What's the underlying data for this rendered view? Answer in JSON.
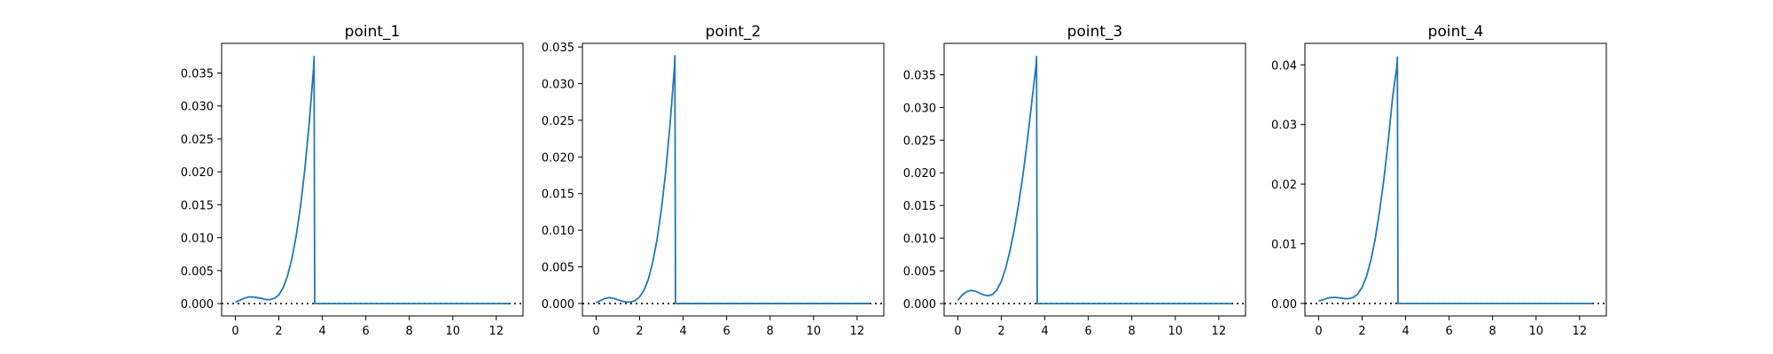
{
  "chart_data": [
    {
      "type": "line",
      "title": "point_1",
      "xlim": [
        -0.63,
        13.23
      ],
      "ylim": [
        -0.00188,
        0.0395
      ],
      "xticks": [
        0,
        2,
        4,
        6,
        8,
        10,
        12
      ],
      "xtick_labels": [
        "0",
        "2",
        "4",
        "6",
        "8",
        "10",
        "12"
      ],
      "yticks": [
        0.0,
        0.005,
        0.01,
        0.015,
        0.02,
        0.025,
        0.03,
        0.035
      ],
      "ytick_labels": [
        "0.000",
        "0.005",
        "0.010",
        "0.015",
        "0.020",
        "0.025",
        "0.030",
        "0.035"
      ],
      "series": [
        {
          "color": "#1f77b4",
          "x": [
            0.0,
            0.2,
            0.4,
            0.6,
            0.8,
            1.0,
            1.2,
            1.4,
            1.6,
            1.8,
            2.0,
            2.2,
            2.4,
            2.6,
            2.8,
            3.0,
            3.2,
            3.4,
            3.6,
            3.62,
            3.65,
            12.6
          ],
          "y": [
            0.0002,
            0.0005,
            0.0008,
            0.001,
            0.001,
            0.0009,
            0.0008,
            0.0006,
            0.0006,
            0.0008,
            0.0013,
            0.0024,
            0.0042,
            0.0068,
            0.0103,
            0.0148,
            0.0205,
            0.0275,
            0.0358,
            0.0375,
            0.0,
            0.0
          ]
        }
      ],
      "reference_line": {
        "y": 0,
        "style": "dotted",
        "color": "#000000"
      },
      "grid": false
    },
    {
      "type": "line",
      "title": "point_2",
      "xlim": [
        -0.63,
        13.23
      ],
      "ylim": [
        -0.0017,
        0.0355
      ],
      "xticks": [
        0,
        2,
        4,
        6,
        8,
        10,
        12
      ],
      "xtick_labels": [
        "0",
        "2",
        "4",
        "6",
        "8",
        "10",
        "12"
      ],
      "yticks": [
        0.0,
        0.005,
        0.01,
        0.015,
        0.02,
        0.025,
        0.03,
        0.035
      ],
      "ytick_labels": [
        "0.000",
        "0.005",
        "0.010",
        "0.015",
        "0.020",
        "0.025",
        "0.030",
        "0.035"
      ],
      "series": [
        {
          "color": "#1f77b4",
          "x": [
            0.0,
            0.2,
            0.4,
            0.6,
            0.8,
            1.0,
            1.2,
            1.4,
            1.6,
            1.8,
            2.0,
            2.2,
            2.4,
            2.6,
            2.8,
            3.0,
            3.2,
            3.4,
            3.6,
            3.62,
            3.65,
            12.6
          ],
          "y": [
            0.0001,
            0.0004,
            0.0007,
            0.0008,
            0.0007,
            0.0005,
            0.0003,
            0.0002,
            0.0002,
            0.0004,
            0.0009,
            0.0018,
            0.0033,
            0.0056,
            0.0087,
            0.0128,
            0.018,
            0.0245,
            0.0322,
            0.0338,
            0.0,
            0.0
          ]
        }
      ],
      "reference_line": {
        "y": 0,
        "style": "dotted",
        "color": "#000000"
      },
      "grid": false
    },
    {
      "type": "line",
      "title": "point_3",
      "xlim": [
        -0.63,
        13.23
      ],
      "ylim": [
        -0.0019,
        0.0398
      ],
      "xticks": [
        0,
        2,
        4,
        6,
        8,
        10,
        12
      ],
      "xtick_labels": [
        "0",
        "2",
        "4",
        "6",
        "8",
        "10",
        "12"
      ],
      "yticks": [
        0.0,
        0.005,
        0.01,
        0.015,
        0.02,
        0.025,
        0.03,
        0.035
      ],
      "ytick_labels": [
        "0.000",
        "0.005",
        "0.010",
        "0.015",
        "0.020",
        "0.025",
        "0.030",
        "0.035"
      ],
      "series": [
        {
          "color": "#1f77b4",
          "x": [
            0.0,
            0.2,
            0.4,
            0.6,
            0.8,
            1.0,
            1.2,
            1.4,
            1.6,
            1.8,
            2.0,
            2.2,
            2.4,
            2.6,
            2.8,
            3.0,
            3.2,
            3.4,
            3.6,
            3.62,
            3.65,
            12.6
          ],
          "y": [
            0.0005,
            0.0013,
            0.0018,
            0.002,
            0.0019,
            0.0016,
            0.0013,
            0.0012,
            0.0014,
            0.0021,
            0.0034,
            0.0054,
            0.0081,
            0.0114,
            0.0153,
            0.0198,
            0.025,
            0.0308,
            0.0365,
            0.0378,
            0.0,
            0.0
          ]
        }
      ],
      "reference_line": {
        "y": 0,
        "style": "dotted",
        "color": "#000000"
      },
      "grid": false
    },
    {
      "type": "line",
      "title": "point_4",
      "xlim": [
        -0.63,
        13.23
      ],
      "ylim": [
        -0.0021,
        0.0436
      ],
      "xticks": [
        0,
        2,
        4,
        6,
        8,
        10,
        12
      ],
      "xtick_labels": [
        "0",
        "2",
        "4",
        "6",
        "8",
        "10",
        "12"
      ],
      "yticks": [
        0.0,
        0.01,
        0.02,
        0.03,
        0.04
      ],
      "ytick_labels": [
        "0.00",
        "0.01",
        "0.02",
        "0.03",
        "0.04"
      ],
      "series": [
        {
          "color": "#1f77b4",
          "x": [
            0.0,
            0.2,
            0.4,
            0.6,
            0.8,
            1.0,
            1.2,
            1.4,
            1.6,
            1.8,
            2.0,
            2.2,
            2.4,
            2.6,
            2.8,
            3.0,
            3.2,
            3.4,
            3.6,
            3.62,
            3.65,
            12.6
          ],
          "y": [
            0.0004,
            0.0006,
            0.0009,
            0.001,
            0.001,
            0.0009,
            0.0008,
            0.0008,
            0.001,
            0.0016,
            0.0027,
            0.0045,
            0.0072,
            0.0108,
            0.0154,
            0.0208,
            0.0272,
            0.0345,
            0.0398,
            0.0413,
            0.0,
            0.0
          ]
        }
      ],
      "reference_line": {
        "y": 0,
        "style": "dotted",
        "color": "#000000"
      },
      "grid": false
    }
  ]
}
